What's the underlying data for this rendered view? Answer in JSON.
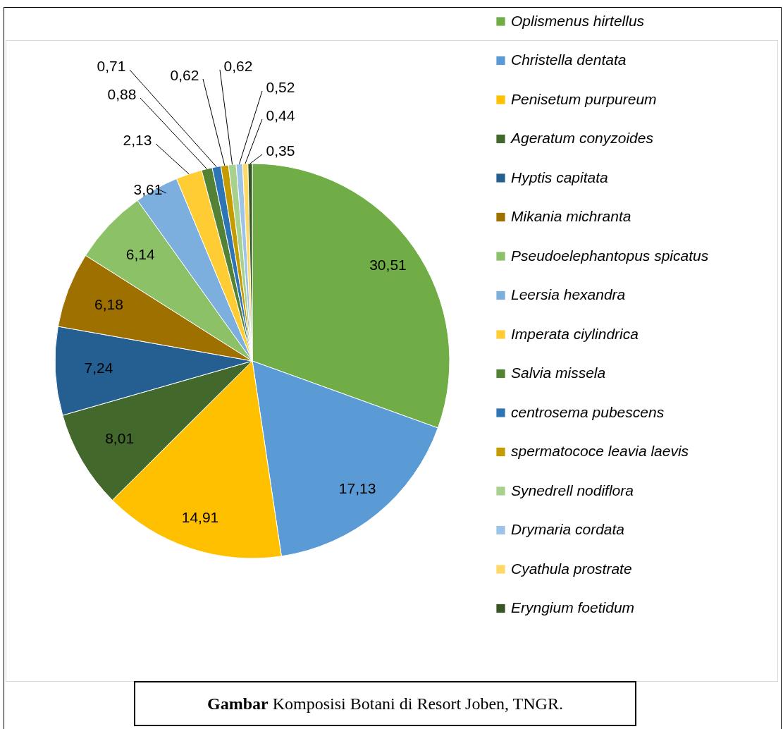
{
  "chart_data": {
    "type": "pie",
    "categories": [
      "Oplismenus hirtellus",
      "Christella dentata",
      "Penisetum purpureum",
      "Ageratum conyzoides",
      "Hyptis capitata",
      "Mikania michranta",
      "Pseudoelephantopus spicatus",
      "Leersia hexandra",
      "Imperata ciylindrica",
      "Salvia missela",
      "centrosema pubescens",
      "spermatococe leavia laevis",
      "Synedrell nodiflora",
      "Drymaria cordata",
      "Cyathula prostrate",
      "Eryngium foetidum"
    ],
    "values": [
      30.51,
      17.13,
      14.91,
      8.01,
      7.24,
      6.18,
      6.14,
      3.61,
      2.13,
      0.88,
      0.71,
      0.62,
      0.62,
      0.52,
      0.44,
      0.35
    ],
    "value_labels": [
      "30,51",
      "17,13",
      "14,91",
      "8,01",
      "7,24",
      "6,18",
      "6,14",
      "3,61",
      "2,13",
      "0,88",
      "0,71",
      "0,62",
      "0,62",
      "0,52",
      "0,44",
      "0,35"
    ],
    "colors": [
      "#70ad47",
      "#5b9bd5",
      "#ffc000",
      "#43682b",
      "#255e91",
      "#9e7000",
      "#8cc168",
      "#7cafdd",
      "#ffcd33",
      "#548235",
      "#2e75b6",
      "#c59b00",
      "#a9d18e",
      "#9dc3e6",
      "#ffd966",
      "#375623"
    ],
    "legend": "right",
    "annotations": [
      "Gambar Komposisi Botani di Resort Joben, TNGR."
    ]
  }
}
